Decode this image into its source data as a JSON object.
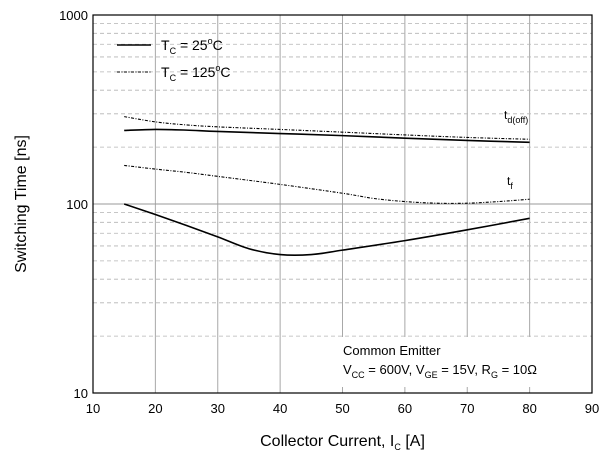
{
  "chart_data": {
    "type": "line",
    "xlabel": "Collector Current, I",
    "xlabel_sub": "C",
    "xlabel_unit": " [A]",
    "ylabel": "Switching Time [ns]",
    "x_axis": {
      "range": [
        10,
        90
      ],
      "ticks": [
        "10",
        "20",
        "30",
        "40",
        "50",
        "60",
        "70",
        "80",
        "90"
      ]
    },
    "y_axis": {
      "scale": "log",
      "range": [
        10,
        1000
      ],
      "ticks": [
        "10",
        "100",
        "1000"
      ]
    },
    "grid": true,
    "legend": {
      "placement": "top-left",
      "entries": [
        {
          "style": "solid",
          "prefix": "T",
          "sub": "C",
          "eq": " = 25",
          "sup": "o",
          "suffix": "C"
        },
        {
          "style": "dashed",
          "prefix": "T",
          "sub": "C",
          "eq": " = 125",
          "sup": "o",
          "suffix": "C"
        }
      ]
    },
    "curve_labels": [
      {
        "main": "t",
        "sub": "d(off)"
      },
      {
        "main": "t",
        "sub": "f"
      }
    ],
    "annotation": {
      "line1": "Common Emitter",
      "line2_parts": [
        {
          "t": "V"
        },
        {
          "t": "CC",
          "sub": true
        },
        {
          "t": " = 600V, V"
        },
        {
          "t": "GE",
          "sub": true
        },
        {
          "t": " = 15V, R"
        },
        {
          "t": "G",
          "sub": true
        },
        {
          "t": " = 10Ω"
        }
      ]
    },
    "series": [
      {
        "curve": "t_d(off)",
        "temperature": "25°C",
        "style": "solid",
        "x": [
          15,
          20,
          25,
          30,
          40,
          50,
          60,
          70,
          80
        ],
        "y": [
          245,
          248,
          246,
          242,
          236,
          230,
          223,
          217,
          212
        ]
      },
      {
        "curve": "t_d(off)",
        "temperature": "125°C",
        "style": "dashed",
        "x": [
          15,
          20,
          25,
          30,
          40,
          50,
          60,
          70,
          80
        ],
        "y": [
          290,
          272,
          262,
          256,
          248,
          240,
          232,
          225,
          220
        ]
      },
      {
        "curve": "t_f",
        "temperature": "25°C",
        "style": "solid",
        "x": [
          15,
          20,
          25,
          30,
          35,
          40,
          45,
          50,
          60,
          70,
          80
        ],
        "y": [
          100,
          88,
          77,
          67,
          58,
          54,
          54,
          57,
          64,
          73,
          84
        ]
      },
      {
        "curve": "t_f",
        "temperature": "125°C",
        "style": "dashed",
        "x": [
          15,
          20,
          25,
          30,
          40,
          50,
          55,
          60,
          65,
          70,
          75,
          80
        ],
        "y": [
          160,
          153,
          147,
          140,
          127,
          114,
          107,
          103,
          101,
          101,
          103,
          106
        ]
      }
    ]
  }
}
